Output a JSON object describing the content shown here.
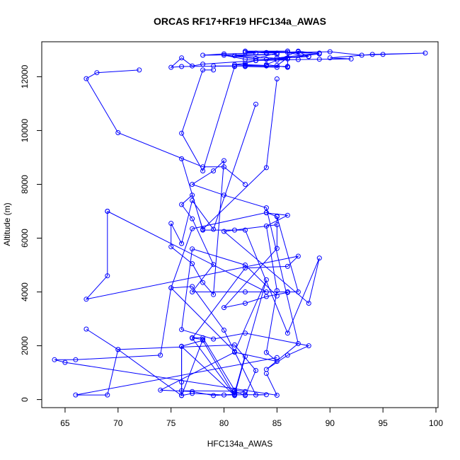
{
  "chart_data": {
    "type": "line",
    "title": "ORCAS RF17+RF19 HFC134a_AWAS",
    "xlabel": "HFC134a_AWAS",
    "ylabel": "Altitude (m)",
    "xlim": [
      62.8,
      100.2
    ],
    "ylim": [
      -300,
      13300
    ],
    "xticks": [
      65,
      70,
      75,
      80,
      85,
      90,
      95,
      100
    ],
    "yticks": [
      0,
      2000,
      4000,
      6000,
      8000,
      10000,
      12000
    ],
    "grid": false,
    "markers": "open-circle",
    "color": "#0000ff",
    "series": [
      {
        "x": [
          82,
          86,
          86,
          84,
          87,
          89,
          86,
          84,
          82,
          80,
          83,
          85,
          82,
          84,
          87,
          88,
          85,
          84,
          89,
          84,
          86,
          82,
          83,
          80,
          78,
          85,
          81,
          86,
          83,
          78,
          77,
          76,
          75,
          76,
          81,
          84,
          82,
          82,
          85,
          85,
          86,
          88,
          86,
          90,
          93,
          95,
          99,
          94,
          90,
          92,
          89,
          87,
          85,
          83,
          82,
          81,
          84,
          86
        ],
        "y": [
          12950,
          12950,
          12350,
          12450,
          12950,
          12850,
          12700,
          12650,
          12650,
          12800,
          12680,
          12880,
          12940,
          12880,
          12930,
          12750,
          12700,
          12650,
          12880,
          12900,
          12950,
          12900,
          12880,
          12850,
          12800,
          12830,
          12780,
          12660,
          12600,
          12470,
          12400,
          12700,
          12350,
          12380,
          12400,
          12420,
          12450,
          12380,
          12350,
          12420,
          12700,
          12750,
          12900,
          12930,
          12800,
          12830,
          12880,
          12830,
          12700,
          12660,
          12650,
          12640,
          12620,
          12600,
          12500,
          12450,
          12400,
          12380
        ]
      },
      {
        "x": [
          72,
          68,
          67,
          70,
          78,
          80,
          82
        ],
        "y": [
          12250,
          12150,
          11930,
          9920,
          8650,
          8650,
          8000
        ]
      },
      {
        "x": [
          79,
          78,
          76,
          78,
          81,
          81,
          79,
          82,
          82,
          86,
          86
        ],
        "y": [
          12250,
          12250,
          9900,
          8500,
          12380,
          12400,
          12400,
          12400,
          12410,
          12380,
          12380
        ]
      },
      {
        "x": [
          85,
          84,
          78,
          77,
          76,
          77,
          79,
          77,
          82,
          86,
          86,
          84,
          82,
          80,
          85,
          85,
          85,
          80,
          88,
          89,
          86,
          82,
          81,
          78,
          76
        ],
        "y": [
          11920,
          8620,
          6330,
          7600,
          7250,
          6720,
          5020,
          4000,
          4000,
          4000,
          3980,
          3830,
          3580,
          3420,
          5620,
          6820,
          6500,
          6250,
          3580,
          5260,
          2470,
          6300,
          6300,
          6300,
          8950
        ]
      },
      {
        "x": [
          83,
          79,
          77,
          76,
          75,
          75,
          77,
          78,
          79,
          80,
          79,
          77,
          80,
          84,
          87,
          84,
          86,
          88,
          82,
          79,
          76,
          77,
          82,
          85
        ],
        "y": [
          10980,
          6330,
          7400,
          5800,
          6550,
          5680,
          5050,
          4350,
          3900,
          8880,
          8500,
          8000,
          7600,
          7130,
          2080,
          1120,
          1650,
          2000,
          2470,
          2250,
          2600,
          5600,
          5000,
          3850
        ]
      },
      {
        "x": [
          69,
          84,
          86,
          87,
          85,
          84,
          77,
          75,
          81,
          84,
          81,
          82,
          81,
          78,
          76,
          76,
          77,
          80,
          82,
          84,
          83,
          80,
          77,
          75,
          74,
          66,
          64,
          65,
          85,
          84
        ],
        "y": [
          7000,
          4000,
          4000,
          4000,
          6800,
          6950,
          6350,
          4150,
          1780,
          4450,
          250,
          1600,
          170,
          2200,
          1980,
          150,
          230,
          170,
          180,
          180,
          170,
          2580,
          4200,
          4150,
          1650,
          1480,
          1480,
          1380,
          160,
          970
        ]
      },
      {
        "x": [
          69,
          69,
          67,
          87,
          86,
          82,
          77,
          81,
          76,
          76,
          76,
          81,
          82,
          83,
          81,
          70,
          69,
          66,
          85
        ],
        "y": [
          7000,
          4600,
          3730,
          5330,
          4950,
          4890,
          2280,
          150,
          1970,
          650,
          330,
          310,
          150,
          1080,
          2030,
          1860,
          170,
          170,
          1560
        ]
      },
      {
        "x": [
          67,
          70,
          76,
          78,
          77,
          77,
          78,
          81,
          82,
          81,
          79,
          77,
          74,
          81,
          85,
          84,
          85,
          84,
          86,
          84
        ],
        "y": [
          2620,
          1860,
          150,
          2230,
          2290,
          2300,
          2300,
          350,
          300,
          200,
          150,
          300,
          350,
          1760,
          1420,
          1750,
          4050,
          6450,
          6850,
          6940
        ]
      }
    ]
  }
}
